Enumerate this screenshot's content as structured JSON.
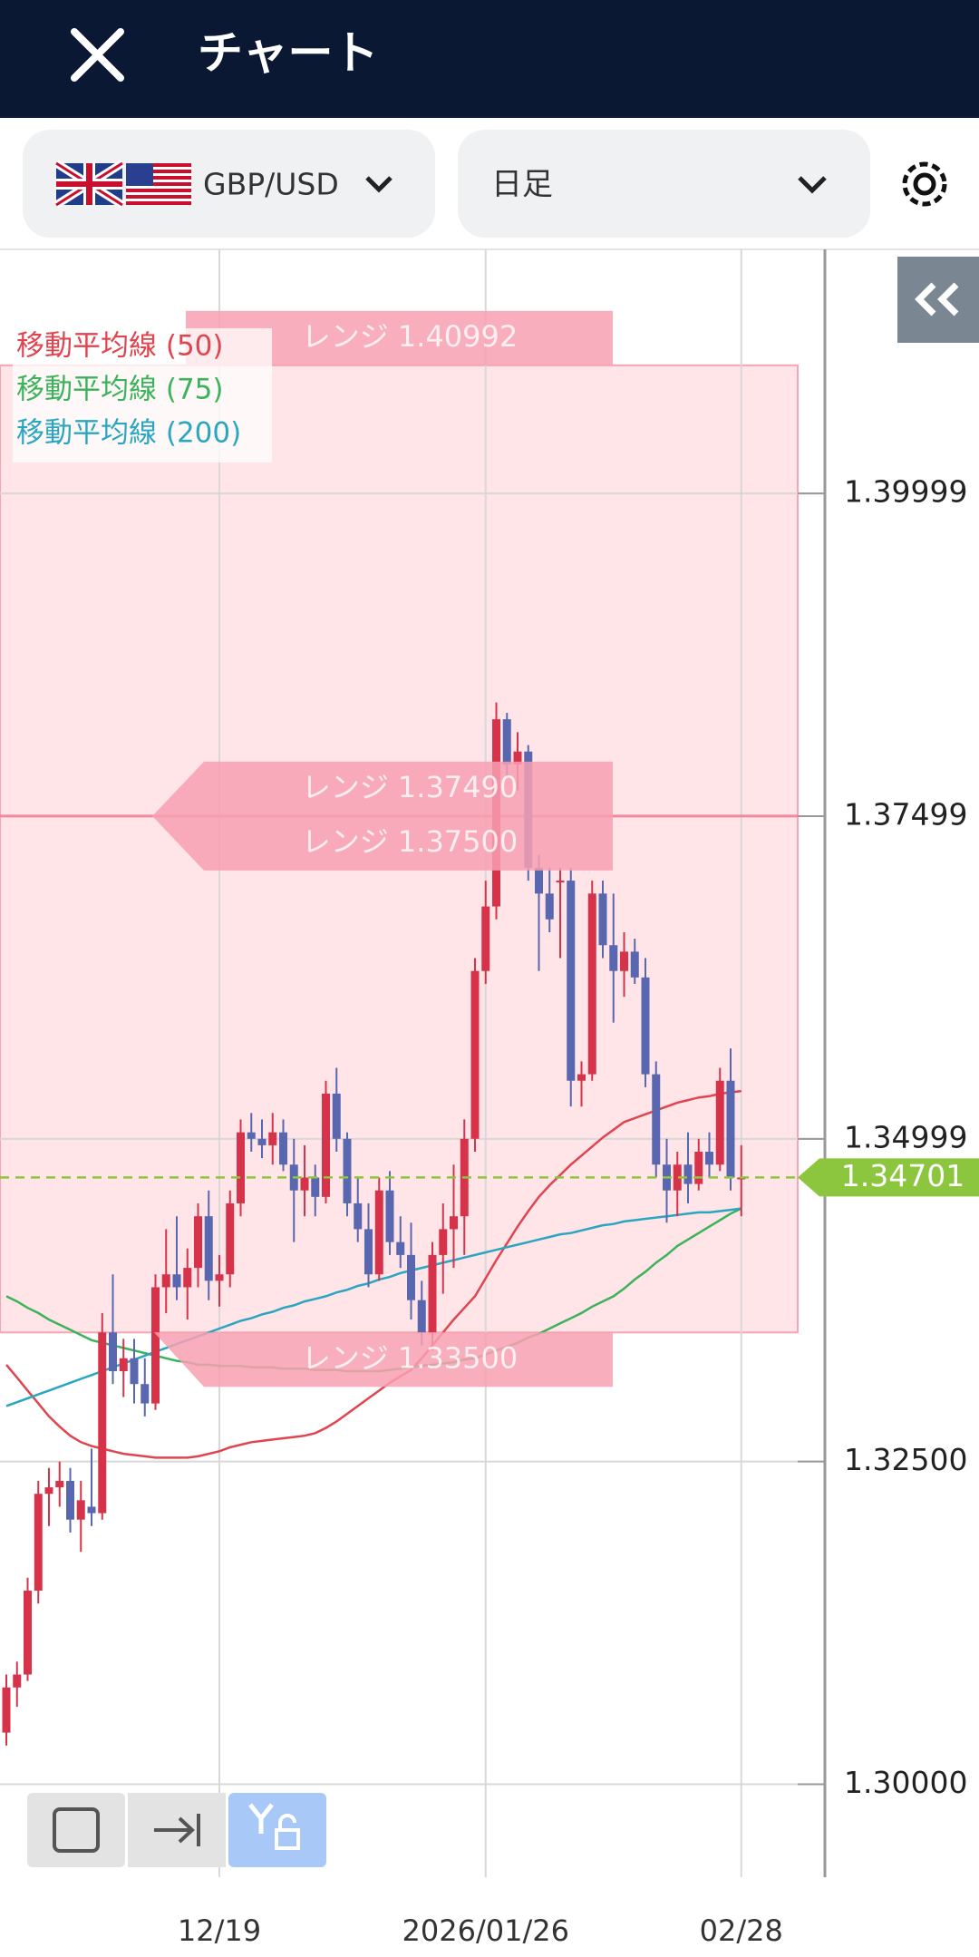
{
  "header": {
    "title": "チャート"
  },
  "toolbar": {
    "pair": "GBP/USD",
    "timeframe": "日足"
  },
  "chart_data": {
    "type": "candlestick",
    "categories": [
      null,
      null,
      null,
      null,
      null,
      null,
      null,
      null,
      null,
      null,
      null,
      null,
      null,
      null,
      null,
      null,
      null,
      null,
      null,
      null,
      "12/19",
      null,
      null,
      null,
      null,
      null,
      null,
      null,
      null,
      null,
      null,
      null,
      null,
      null,
      null,
      null,
      null,
      null,
      null,
      null,
      null,
      null,
      null,
      null,
      null,
      "2026/01/26",
      null,
      null,
      null,
      null,
      null,
      null,
      null,
      null,
      null,
      null,
      null,
      null,
      null,
      null,
      null,
      null,
      null,
      null,
      null,
      null,
      null,
      null,
      null,
      "02/28"
    ],
    "open": [
      1.304,
      1.3075,
      1.3085,
      1.315,
      1.3225,
      1.323,
      1.3235,
      1.3205,
      1.3215,
      1.321,
      1.335,
      1.332,
      1.333,
      1.331,
      1.3295,
      1.3385,
      1.3395,
      1.3385,
      1.34,
      1.344,
      1.339,
      1.3395,
      1.345,
      1.3505,
      1.35,
      1.3495,
      1.3505,
      1.348,
      1.346,
      1.347,
      1.3455,
      1.3535,
      1.35,
      1.345,
      1.343,
      1.3395,
      1.346,
      1.342,
      1.341,
      1.3375,
      1.335,
      1.341,
      1.343,
      1.344,
      1.35,
      1.363,
      1.368,
      1.3825,
      1.379,
      1.38,
      1.371,
      1.369,
      1.37,
      1.37,
      1.3545,
      1.355,
      1.369,
      1.365,
      1.363,
      1.3645,
      1.3625,
      1.355,
      1.348,
      1.346,
      1.348,
      1.3465,
      1.349,
      1.348,
      1.3545,
      1.347
    ],
    "high": [
      1.3085,
      1.3095,
      1.316,
      1.3235,
      1.3245,
      1.325,
      1.3245,
      1.3235,
      1.326,
      1.3365,
      1.3395,
      1.3345,
      1.3345,
      1.333,
      1.3395,
      1.343,
      1.344,
      1.3415,
      1.345,
      1.346,
      1.341,
      1.346,
      1.3515,
      1.352,
      1.3515,
      1.352,
      1.3515,
      1.35,
      1.3495,
      1.348,
      1.3545,
      1.3555,
      1.3505,
      1.347,
      1.345,
      1.347,
      1.3475,
      1.344,
      1.3435,
      1.339,
      1.342,
      1.345,
      1.348,
      1.3515,
      1.364,
      1.37,
      1.3838,
      1.383,
      1.3815,
      1.3805,
      1.372,
      1.371,
      1.371,
      1.371,
      1.356,
      1.37,
      1.37,
      1.369,
      1.366,
      1.3655,
      1.364,
      1.356,
      1.35,
      1.349,
      1.3505,
      1.35,
      1.3505,
      1.3555,
      1.357,
      1.3495
    ],
    "low": [
      1.303,
      1.306,
      1.308,
      1.314,
      1.32,
      1.3215,
      1.3195,
      1.318,
      1.32,
      1.3205,
      1.331,
      1.33,
      1.3295,
      1.3285,
      1.329,
      1.3365,
      1.3375,
      1.336,
      1.3385,
      1.3375,
      1.337,
      1.3385,
      1.344,
      1.349,
      1.3485,
      1.348,
      1.3475,
      1.342,
      1.344,
      1.344,
      1.345,
      1.349,
      1.344,
      1.342,
      1.3385,
      1.339,
      1.341,
      1.34,
      1.336,
      1.334,
      1.3336,
      1.338,
      1.34,
      1.341,
      1.349,
      1.362,
      1.367,
      1.378,
      1.377,
      1.37,
      1.363,
      1.366,
      1.364,
      1.3525,
      1.3525,
      1.3545,
      1.364,
      1.359,
      1.361,
      1.362,
      1.354,
      1.347,
      1.3435,
      1.344,
      1.345,
      1.346,
      1.347,
      1.3475,
      1.346,
      1.344
    ],
    "close": [
      1.3075,
      1.3085,
      1.315,
      1.3225,
      1.323,
      1.3235,
      1.3205,
      1.322,
      1.321,
      1.335,
      1.332,
      1.333,
      1.331,
      1.3295,
      1.3385,
      1.3395,
      1.3385,
      1.34,
      1.344,
      1.339,
      1.3395,
      1.345,
      1.3505,
      1.35,
      1.3495,
      1.3505,
      1.348,
      1.346,
      1.347,
      1.3455,
      1.3535,
      1.35,
      1.345,
      1.343,
      1.3395,
      1.346,
      1.342,
      1.341,
      1.3375,
      1.335,
      1.341,
      1.343,
      1.344,
      1.35,
      1.363,
      1.368,
      1.3825,
      1.379,
      1.38,
      1.371,
      1.369,
      1.367,
      1.37,
      1.3545,
      1.355,
      1.369,
      1.365,
      1.363,
      1.3645,
      1.3625,
      1.355,
      1.348,
      1.346,
      1.348,
      1.3465,
      1.349,
      1.348,
      1.3545,
      1.347,
      1.347
    ],
    "up_color": "#d6334b",
    "down_color": "#5867b0",
    "series": [
      {
        "name": "移動平均線 (50)",
        "color": "#e0454f",
        "values": [
          1.3325,
          1.3315,
          1.3305,
          1.3295,
          1.3285,
          1.3277,
          1.327,
          1.3265,
          1.3262,
          1.326,
          1.3258,
          1.3256,
          1.3255,
          1.3254,
          1.3253,
          1.3253,
          1.3253,
          1.3253,
          1.3254,
          1.3256,
          1.3258,
          1.3261,
          1.3263,
          1.3265,
          1.3266,
          1.3267,
          1.3268,
          1.3269,
          1.327,
          1.3272,
          1.3276,
          1.3281,
          1.3287,
          1.3293,
          1.3299,
          1.3305,
          1.3311,
          1.3316,
          1.3321,
          1.333,
          1.334,
          1.335,
          1.336,
          1.3369,
          1.3378,
          1.3392,
          1.3406,
          1.3419,
          1.3432,
          1.3444,
          1.3455,
          1.3464,
          1.3472,
          1.348,
          1.3487,
          1.3494,
          1.3501,
          1.3507,
          1.3513,
          1.3516,
          1.3519,
          1.3522,
          1.3525,
          1.3528,
          1.353,
          1.3532,
          1.3533,
          1.3535,
          1.3536,
          1.3537
        ]
      },
      {
        "name": "移動平均線 (75)",
        "color": "#3cb35a",
        "values": [
          1.3378,
          1.3374,
          1.3369,
          1.3365,
          1.336,
          1.3356,
          1.3352,
          1.3348,
          1.3344,
          1.3342,
          1.334,
          1.3338,
          1.3336,
          1.3334,
          1.3332,
          1.333,
          1.3328,
          1.3327,
          1.3325,
          1.3325,
          1.3324,
          1.3324,
          1.3324,
          1.3323,
          1.3323,
          1.3323,
          1.3322,
          1.3322,
          1.3322,
          1.3321,
          1.3321,
          1.3321,
          1.332,
          1.332,
          1.332,
          1.332,
          1.3321,
          1.3322,
          1.3323,
          1.3324,
          1.3325,
          1.3326,
          1.3327,
          1.3329,
          1.333,
          1.3333,
          1.3336,
          1.3339,
          1.3342,
          1.3346,
          1.3349,
          1.3353,
          1.3357,
          1.3361,
          1.3365,
          1.337,
          1.3374,
          1.3378,
          1.3384,
          1.3391,
          1.3397,
          1.3404,
          1.341,
          1.3417,
          1.3422,
          1.3427,
          1.3432,
          1.3437,
          1.3442,
          1.3446
        ]
      },
      {
        "name": "移動平均線 (200)",
        "color": "#2aa6c0",
        "values": [
          1.3293,
          1.3296,
          1.3299,
          1.3302,
          1.3305,
          1.3308,
          1.3311,
          1.3314,
          1.3317,
          1.332,
          1.3323,
          1.3326,
          1.3329,
          1.3332,
          1.3335,
          1.3338,
          1.3341,
          1.3344,
          1.3347,
          1.335,
          1.3353,
          1.3356,
          1.3359,
          1.3361,
          1.3364,
          1.3366,
          1.3369,
          1.3371,
          1.3374,
          1.3376,
          1.3378,
          1.3381,
          1.3383,
          1.3386,
          1.3388,
          1.3391,
          1.3393,
          1.3396,
          1.3398,
          1.34,
          1.3402,
          1.3404,
          1.3406,
          1.3408,
          1.341,
          1.3412,
          1.3414,
          1.3416,
          1.3418,
          1.342,
          1.3422,
          1.3424,
          1.3426,
          1.3427,
          1.3429,
          1.3431,
          1.3433,
          1.3434,
          1.3436,
          1.3437,
          1.3438,
          1.3439,
          1.344,
          1.3441,
          1.3442,
          1.3443,
          1.3443,
          1.3444,
          1.3445,
          1.3446
        ]
      }
    ],
    "ylim": [
      1.2928,
      1.4189
    ],
    "yticks": [
      1.39999,
      1.37499,
      1.34999,
      {
        "value": 1.325,
        "label": "1.32500"
      },
      {
        "value": 1.3,
        "label": "1.30000"
      }
    ],
    "grid": true,
    "current_price": 1.34701,
    "current_price_color": "#8cc63f",
    "annotations": [
      {
        "label": "レンジ 1.40992",
        "value": 1.40992
      },
      {
        "label": "レンジ 1.37490",
        "value": 1.3749
      },
      {
        "label": "レンジ 1.37500",
        "value": 1.375
      },
      {
        "label": "レンジ 1.33500",
        "value": 1.335
      }
    ]
  }
}
